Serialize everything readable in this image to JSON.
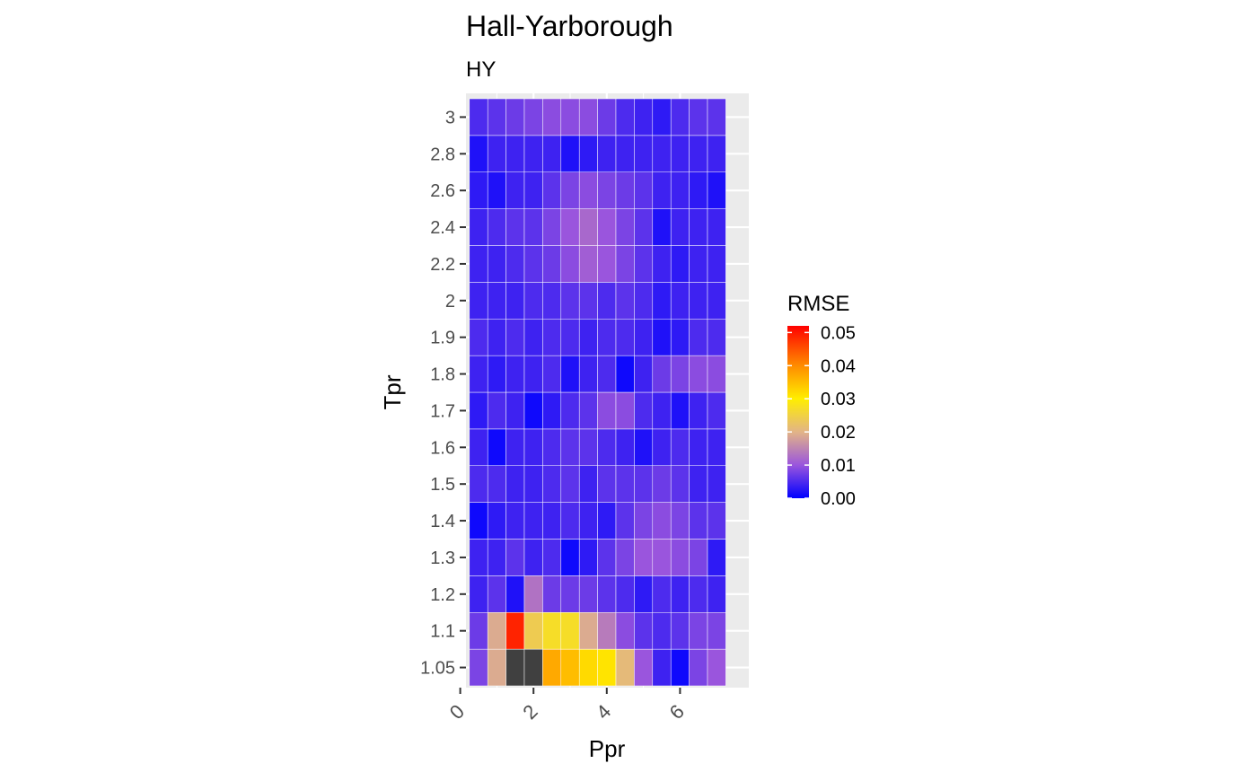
{
  "chart_data": {
    "type": "heatmap",
    "title": "Hall-Yarborough",
    "subtitle": "HY",
    "xlabel": "Ppr",
    "ylabel": "Tpr",
    "x_ticks": [
      "0",
      "2",
      "4",
      "6"
    ],
    "x_tick_values": [
      0,
      2,
      4,
      6
    ],
    "xlim": [
      0,
      7.5
    ],
    "x_centers": [
      0.5,
      1.0,
      1.5,
      2.0,
      2.5,
      3.0,
      3.5,
      4.0,
      4.5,
      5.0,
      5.5,
      6.0,
      6.5,
      7.0
    ],
    "y_categories": [
      "1.05",
      "1.1",
      "1.2",
      "1.3",
      "1.4",
      "1.5",
      "1.6",
      "1.7",
      "1.8",
      "1.9",
      "2",
      "2.2",
      "2.4",
      "2.6",
      "2.8",
      "3"
    ],
    "values": [
      [
        0.008,
        0.019,
        null,
        null,
        0.037,
        0.035,
        0.032,
        0.031,
        0.021,
        0.01,
        0.004,
        0.001,
        0.008,
        0.01
      ],
      [
        0.007,
        0.019,
        0.049,
        0.024,
        0.027,
        0.027,
        0.019,
        0.014,
        0.009,
        0.006,
        0.005,
        0.006,
        0.008,
        0.008
      ],
      [
        0.004,
        0.006,
        0.002,
        0.013,
        0.007,
        0.007,
        0.007,
        0.006,
        0.005,
        0.003,
        0.005,
        0.004,
        0.005,
        0.004
      ],
      [
        0.004,
        0.004,
        0.006,
        0.004,
        0.005,
        0.001,
        0.003,
        0.006,
        0.008,
        0.01,
        0.01,
        0.009,
        0.008,
        0.003
      ],
      [
        0.001,
        0.003,
        0.004,
        0.004,
        0.004,
        0.005,
        0.004,
        0.003,
        0.006,
        0.008,
        0.009,
        0.008,
        0.006,
        0.006
      ],
      [
        0.005,
        0.005,
        0.004,
        0.004,
        0.005,
        0.006,
        0.004,
        0.006,
        0.006,
        0.006,
        0.007,
        0.006,
        0.004,
        0.004
      ],
      [
        0.004,
        0.001,
        0.004,
        0.004,
        0.005,
        0.006,
        0.006,
        0.005,
        0.004,
        0.002,
        0.004,
        0.005,
        0.004,
        0.004
      ],
      [
        0.003,
        0.005,
        0.004,
        0.001,
        0.003,
        0.005,
        0.006,
        0.009,
        0.009,
        0.005,
        0.004,
        0.002,
        0.004,
        0.005
      ],
      [
        0.004,
        0.003,
        0.004,
        0.004,
        0.005,
        0.002,
        0.004,
        0.005,
        0.001,
        0.004,
        0.007,
        0.008,
        0.009,
        0.009
      ],
      [
        0.005,
        0.004,
        0.005,
        0.004,
        0.005,
        0.005,
        0.004,
        0.005,
        0.005,
        0.004,
        0.002,
        0.003,
        0.005,
        0.005
      ],
      [
        0.004,
        0.004,
        0.004,
        0.005,
        0.005,
        0.006,
        0.006,
        0.005,
        0.006,
        0.005,
        0.003,
        0.004,
        0.004,
        0.004
      ],
      [
        0.004,
        0.004,
        0.005,
        0.006,
        0.007,
        0.009,
        0.011,
        0.01,
        0.008,
        0.006,
        0.004,
        0.003,
        0.004,
        0.004
      ],
      [
        0.004,
        0.005,
        0.006,
        0.006,
        0.008,
        0.01,
        0.012,
        0.01,
        0.008,
        0.006,
        0.002,
        0.004,
        0.004,
        0.004
      ],
      [
        0.003,
        0.002,
        0.004,
        0.004,
        0.006,
        0.008,
        0.009,
        0.008,
        0.007,
        0.006,
        0.004,
        0.004,
        0.003,
        0.002
      ],
      [
        0.002,
        0.004,
        0.004,
        0.004,
        0.004,
        0.002,
        0.003,
        0.004,
        0.004,
        0.004,
        0.004,
        0.004,
        0.004,
        0.004
      ],
      [
        0.005,
        0.006,
        0.007,
        0.008,
        0.009,
        0.009,
        0.009,
        0.007,
        0.005,
        0.004,
        0.003,
        0.005,
        0.006,
        0.006
      ]
    ],
    "legend": {
      "title": "RMSE",
      "ticks": [
        "0.00",
        "0.01",
        "0.02",
        "0.03",
        "0.04",
        "0.05"
      ],
      "tick_values": [
        0,
        0.01,
        0.02,
        0.03,
        0.04,
        0.05
      ],
      "range": [
        0,
        0.052
      ],
      "placement": "right"
    },
    "color_scale": [
      {
        "v": 0.0,
        "color": "#0000ff"
      },
      {
        "v": 0.01,
        "color": "#9a55dd"
      },
      {
        "v": 0.02,
        "color": "#e2b487"
      },
      {
        "v": 0.03,
        "color": "#ffee00"
      },
      {
        "v": 0.04,
        "color": "#ff8c00"
      },
      {
        "v": 0.052,
        "color": "#ff0000"
      }
    ],
    "na_color": "#404040",
    "panel_background": "#ebebeb",
    "grid": true
  }
}
